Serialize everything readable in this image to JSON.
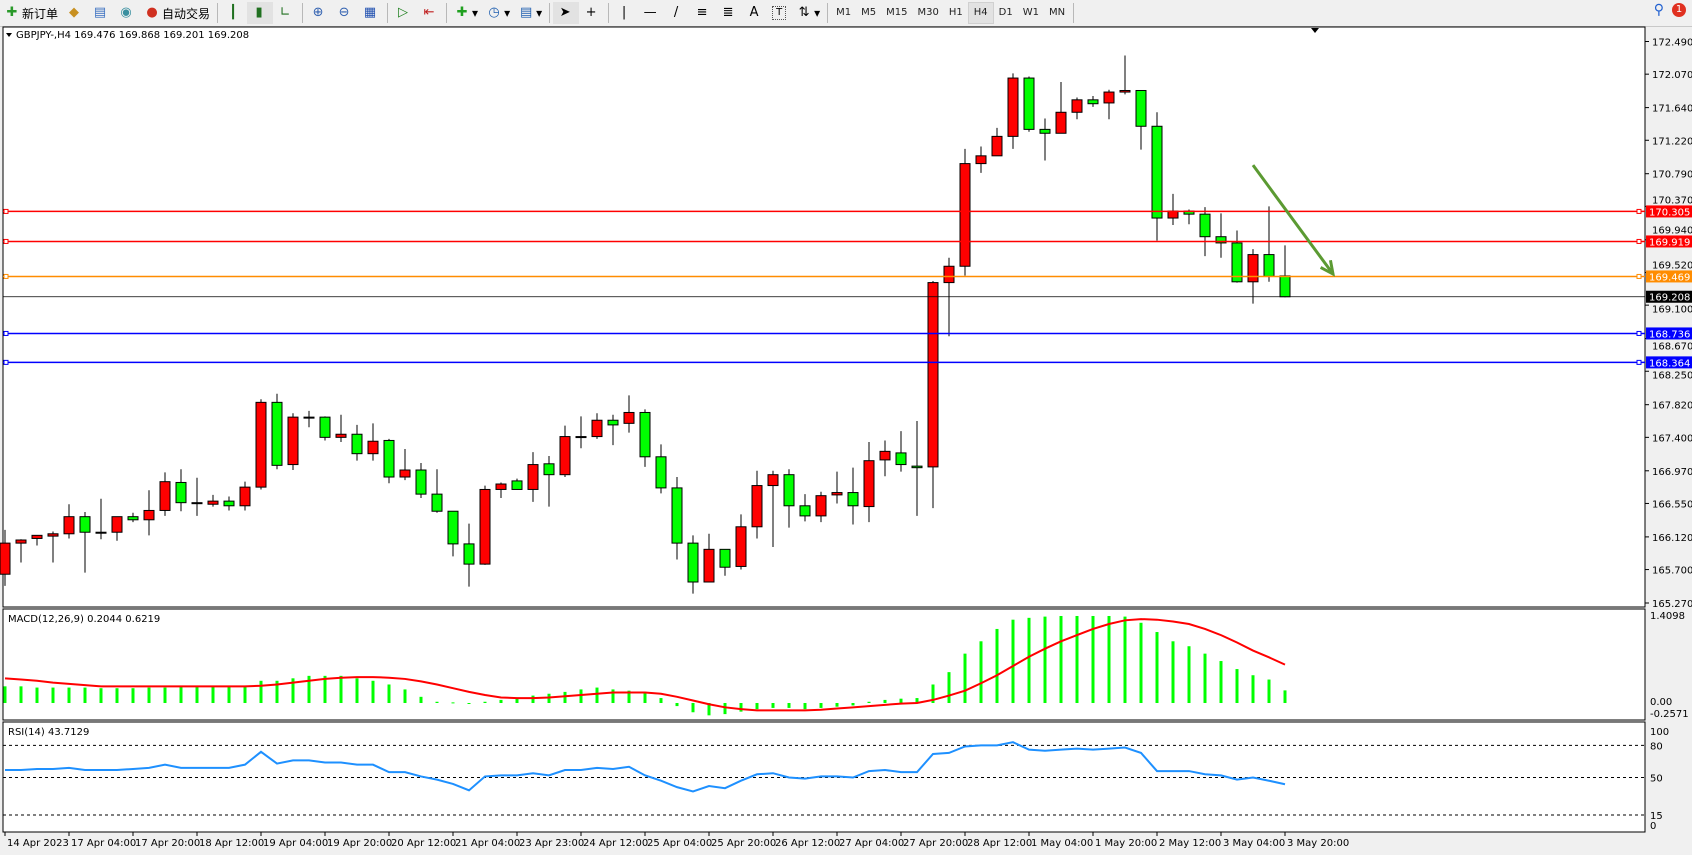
{
  "toolbar": {
    "new_order": "新订单",
    "auto_trading": "自动交易",
    "icons": [
      "new-order-icon",
      "history-center-icon",
      "terminal-icon",
      "signals-icon",
      "auto-trading-icon",
      "bar-chart-icon",
      "candlestick-icon",
      "line-chart-icon",
      "zoom-in-icon",
      "zoom-out-icon",
      "tile-windows-icon",
      "chart-shift-icon",
      "autoscroll-icon",
      "indicators-icon",
      "periods-icon",
      "templates-icon",
      "cursor-icon",
      "crosshair-icon",
      "vertical-line-icon",
      "horizontal-line-icon",
      "trendline-icon",
      "fibonacci-icon",
      "fibonacci-fan-icon",
      "text-icon",
      "text-label-icon",
      "arrows-icon"
    ],
    "drawing_labels": {
      "text": "A",
      "label": "T"
    },
    "timeframes": [
      "M1",
      "M5",
      "M15",
      "M30",
      "H1",
      "H4",
      "D1",
      "W1",
      "MN"
    ],
    "active_timeframe": "H4",
    "notification_count": "1"
  },
  "chart": {
    "header": "GBPJPY-,H4  169.476 169.868 169.201 169.208",
    "colors": {
      "bull": "#ff0000",
      "bear": "#00ff00",
      "bg": "#ffffff",
      "grid_text": "#000000"
    }
  },
  "chart_data": [
    {
      "type": "candlestick",
      "symbol": "GBPJPY-",
      "timeframe": "H4",
      "ylim": [
        165.27,
        172.49
      ],
      "y_ticks": [
        "172.490",
        "172.070",
        "171.640",
        "171.220",
        "170.790",
        "170.370",
        "169.940",
        "169.520",
        "169.100",
        "168.670",
        "168.250",
        "167.820",
        "167.400",
        "166.970",
        "166.550",
        "166.120",
        "165.700",
        "165.270"
      ],
      "x_tick_labels": [
        "14 Apr 2023",
        "17 Apr 04:00",
        "17 Apr 20:00",
        "18 Apr 12:00",
        "19 Apr 04:00",
        "19 Apr 20:00",
        "20 Apr 12:00",
        "21 Apr 04:00",
        "23 Apr 23:00",
        "24 Apr 12:00",
        "25 Apr 04:00",
        "25 Apr 20:00",
        "26 Apr 12:00",
        "27 Apr 04:00",
        "27 Apr 20:00",
        "28 Apr 12:00",
        "1 May 04:00",
        "1 May 20:00",
        "2 May 12:00",
        "3 May 04:00",
        "3 May 20:00"
      ],
      "ohlc": [
        [
          165.64,
          166.21,
          165.49,
          166.04
        ],
        [
          166.04,
          166.09,
          165.79,
          166.08
        ],
        [
          166.1,
          166.14,
          166.01,
          166.14
        ],
        [
          166.13,
          166.19,
          165.79,
          166.16
        ],
        [
          166.16,
          166.54,
          166.1,
          166.38
        ],
        [
          166.38,
          166.44,
          165.66,
          166.18
        ],
        [
          166.18,
          166.61,
          166.09,
          166.18
        ],
        [
          166.18,
          166.38,
          166.07,
          166.38
        ],
        [
          166.38,
          166.43,
          166.31,
          166.34
        ],
        [
          166.34,
          166.72,
          166.14,
          166.46
        ],
        [
          166.46,
          166.95,
          166.39,
          166.83
        ],
        [
          166.82,
          166.99,
          166.45,
          166.56
        ],
        [
          166.56,
          166.88,
          166.39,
          166.56
        ],
        [
          166.54,
          166.66,
          166.51,
          166.58
        ],
        [
          166.58,
          166.64,
          166.46,
          166.52
        ],
        [
          166.52,
          166.83,
          166.46,
          166.76
        ],
        [
          166.76,
          167.89,
          166.73,
          167.85
        ],
        [
          167.85,
          167.96,
          166.99,
          167.04
        ],
        [
          167.05,
          167.71,
          166.98,
          167.66
        ],
        [
          167.66,
          167.74,
          167.53,
          167.66
        ],
        [
          167.66,
          167.67,
          167.36,
          167.4
        ],
        [
          167.4,
          167.69,
          167.34,
          167.44
        ],
        [
          167.44,
          167.56,
          167.1,
          167.19
        ],
        [
          167.19,
          167.58,
          167.1,
          167.35
        ],
        [
          167.36,
          167.38,
          166.81,
          166.89
        ],
        [
          166.89,
          167.25,
          166.85,
          166.98
        ],
        [
          166.98,
          167.07,
          166.62,
          166.67
        ],
        [
          166.67,
          166.99,
          166.43,
          166.45
        ],
        [
          166.45,
          166.45,
          165.87,
          166.03
        ],
        [
          166.03,
          166.29,
          165.48,
          165.77
        ],
        [
          165.77,
          166.78,
          165.76,
          166.73
        ],
        [
          166.73,
          166.82,
          166.62,
          166.8
        ],
        [
          166.84,
          166.87,
          166.73,
          166.73
        ],
        [
          166.73,
          167.21,
          166.57,
          167.05
        ],
        [
          167.06,
          167.16,
          166.51,
          166.92
        ],
        [
          166.92,
          167.55,
          166.89,
          167.41
        ],
        [
          167.41,
          167.67,
          167.26,
          167.41
        ],
        [
          167.41,
          167.71,
          167.38,
          167.62
        ],
        [
          167.62,
          167.69,
          167.3,
          167.56
        ],
        [
          167.58,
          167.94,
          167.46,
          167.72
        ],
        [
          167.72,
          167.76,
          167.02,
          167.15
        ],
        [
          167.15,
          167.31,
          166.68,
          166.75
        ],
        [
          166.75,
          166.89,
          165.83,
          166.04
        ],
        [
          166.04,
          166.14,
          165.39,
          165.54
        ],
        [
          165.54,
          166.16,
          165.54,
          165.96
        ],
        [
          165.96,
          165.96,
          165.62,
          165.73
        ],
        [
          165.74,
          166.41,
          165.7,
          166.25
        ],
        [
          166.25,
          166.97,
          166.1,
          166.78
        ],
        [
          166.78,
          166.97,
          165.99,
          166.92
        ],
        [
          166.92,
          166.99,
          166.24,
          166.52
        ],
        [
          166.52,
          166.67,
          166.32,
          166.39
        ],
        [
          166.39,
          166.7,
          166.31,
          166.65
        ],
        [
          166.66,
          166.96,
          166.55,
          166.69
        ],
        [
          166.69,
          167.01,
          166.28,
          166.52
        ],
        [
          166.51,
          167.34,
          166.31,
          167.1
        ],
        [
          167.11,
          167.36,
          166.9,
          167.22
        ],
        [
          167.2,
          167.48,
          166.96,
          167.05
        ],
        [
          167.03,
          167.61,
          166.39,
          167.01
        ],
        [
          167.02,
          169.41,
          166.49,
          169.39
        ],
        [
          169.39,
          169.71,
          168.7,
          169.6
        ],
        [
          169.6,
          171.11,
          169.48,
          170.92
        ],
        [
          170.92,
          171.14,
          170.8,
          171.02
        ],
        [
          171.02,
          171.38,
          171.02,
          171.27
        ],
        [
          171.27,
          172.08,
          171.11,
          172.02
        ],
        [
          172.02,
          172.04,
          171.33,
          171.36
        ],
        [
          171.36,
          171.5,
          170.96,
          171.31
        ],
        [
          171.31,
          171.97,
          171.31,
          171.58
        ],
        [
          171.58,
          171.77,
          171.49,
          171.74
        ],
        [
          171.74,
          171.79,
          171.65,
          171.69
        ],
        [
          171.7,
          171.87,
          171.49,
          171.84
        ],
        [
          171.84,
          172.31,
          171.81,
          171.86
        ],
        [
          171.86,
          171.86,
          171.1,
          171.4
        ],
        [
          171.4,
          171.58,
          169.93,
          170.22
        ],
        [
          170.22,
          170.53,
          170.13,
          170.31
        ],
        [
          170.31,
          170.33,
          170.14,
          170.27
        ],
        [
          170.27,
          170.36,
          169.73,
          169.98
        ],
        [
          169.98,
          170.28,
          169.71,
          169.9
        ],
        [
          169.9,
          170.06,
          169.39,
          169.4
        ],
        [
          169.4,
          169.82,
          169.12,
          169.75
        ],
        [
          169.75,
          170.37,
          169.4,
          169.47
        ],
        [
          169.476,
          169.868,
          169.201,
          169.208
        ]
      ],
      "current_price": {
        "value": 169.208,
        "label": "169.208",
        "color": "#000000"
      },
      "horizontal_lines": [
        {
          "value": 170.305,
          "label": "170.305",
          "color": "#ff0000"
        },
        {
          "value": 169.919,
          "label": "169.919",
          "color": "#ff0000"
        },
        {
          "value": 169.469,
          "label": "169.469",
          "color": "#ff8c00"
        },
        {
          "value": 168.736,
          "label": "168.736",
          "color": "#0000ff"
        },
        {
          "value": 168.364,
          "label": "168.364",
          "color": "#0000ff"
        }
      ],
      "annotation_arrow": {
        "from": {
          "bar": 78,
          "price": 170.9
        },
        "to": {
          "bar": 83,
          "price": 169.5
        },
        "color": "#5b9a32"
      }
    },
    {
      "type": "bar",
      "title": "MACD(12,26,9) 0.2044 0.6219",
      "ylim": [
        -0.2571,
        1.4098
      ],
      "y_ticks": [
        "1.4098",
        "0.00",
        "-0.2571"
      ],
      "histogram_color": "#00ff00",
      "signal_color": "#ff0000",
      "histogram": [
        0.27,
        0.27,
        0.25,
        0.25,
        0.25,
        0.25,
        0.24,
        0.24,
        0.24,
        0.25,
        0.25,
        0.26,
        0.26,
        0.26,
        0.26,
        0.26,
        0.36,
        0.36,
        0.4,
        0.44,
        0.44,
        0.44,
        0.4,
        0.36,
        0.3,
        0.22,
        0.1,
        0.02,
        0.01,
        -0.01,
        0.02,
        0.05,
        0.08,
        0.12,
        0.15,
        0.18,
        0.22,
        0.25,
        0.22,
        0.2,
        0.18,
        0.08,
        -0.05,
        -0.15,
        -0.2,
        -0.18,
        -0.14,
        -0.1,
        -0.08,
        -0.08,
        -0.1,
        -0.08,
        -0.06,
        -0.04,
        0.02,
        0.05,
        0.07,
        0.08,
        0.3,
        0.5,
        0.8,
        1.0,
        1.2,
        1.35,
        1.38,
        1.4,
        1.41,
        1.41,
        1.41,
        1.41,
        1.4,
        1.3,
        1.15,
        1.0,
        0.92,
        0.8,
        0.68,
        0.55,
        0.45,
        0.38,
        0.2044
      ],
      "signal": [
        0.4,
        0.38,
        0.36,
        0.33,
        0.31,
        0.29,
        0.27,
        0.27,
        0.27,
        0.27,
        0.27,
        0.27,
        0.27,
        0.27,
        0.27,
        0.27,
        0.28,
        0.3,
        0.33,
        0.36,
        0.39,
        0.41,
        0.42,
        0.42,
        0.41,
        0.39,
        0.35,
        0.3,
        0.24,
        0.18,
        0.13,
        0.09,
        0.08,
        0.08,
        0.09,
        0.11,
        0.13,
        0.15,
        0.17,
        0.17,
        0.17,
        0.15,
        0.1,
        0.04,
        -0.02,
        -0.07,
        -0.1,
        -0.12,
        -0.12,
        -0.12,
        -0.12,
        -0.11,
        -0.09,
        -0.07,
        -0.05,
        -0.03,
        -0.01,
        0.0,
        0.05,
        0.12,
        0.2,
        0.32,
        0.45,
        0.6,
        0.75,
        0.88,
        1.0,
        1.1,
        1.2,
        1.28,
        1.34,
        1.36,
        1.35,
        1.32,
        1.28,
        1.2,
        1.1,
        0.98,
        0.85,
        0.74,
        0.6219
      ]
    },
    {
      "type": "line",
      "title": "RSI(14) 43.7129",
      "ylim": [
        0,
        100
      ],
      "y_ticks": [
        "100",
        "80",
        "50",
        "15",
        "0"
      ],
      "levels": [
        80,
        50,
        15
      ],
      "line_color": "#1e90ff",
      "values": [
        57,
        57,
        58,
        58,
        59,
        57,
        57,
        57,
        58,
        59,
        62,
        59,
        59,
        59,
        59,
        62,
        74,
        63,
        66,
        66,
        64,
        64,
        62,
        62,
        55,
        55,
        51,
        48,
        44,
        38,
        51,
        52,
        52,
        54,
        52,
        57,
        57,
        59,
        58,
        60,
        52,
        47,
        41,
        37,
        42,
        40,
        47,
        53,
        54,
        50,
        49,
        51,
        51,
        50,
        56,
        57,
        55,
        55,
        72,
        73,
        79,
        80,
        80,
        83,
        76,
        75,
        76,
        77,
        76,
        77,
        78,
        73,
        56,
        56,
        56,
        53,
        52,
        48,
        50,
        47,
        43.7129
      ]
    }
  ]
}
